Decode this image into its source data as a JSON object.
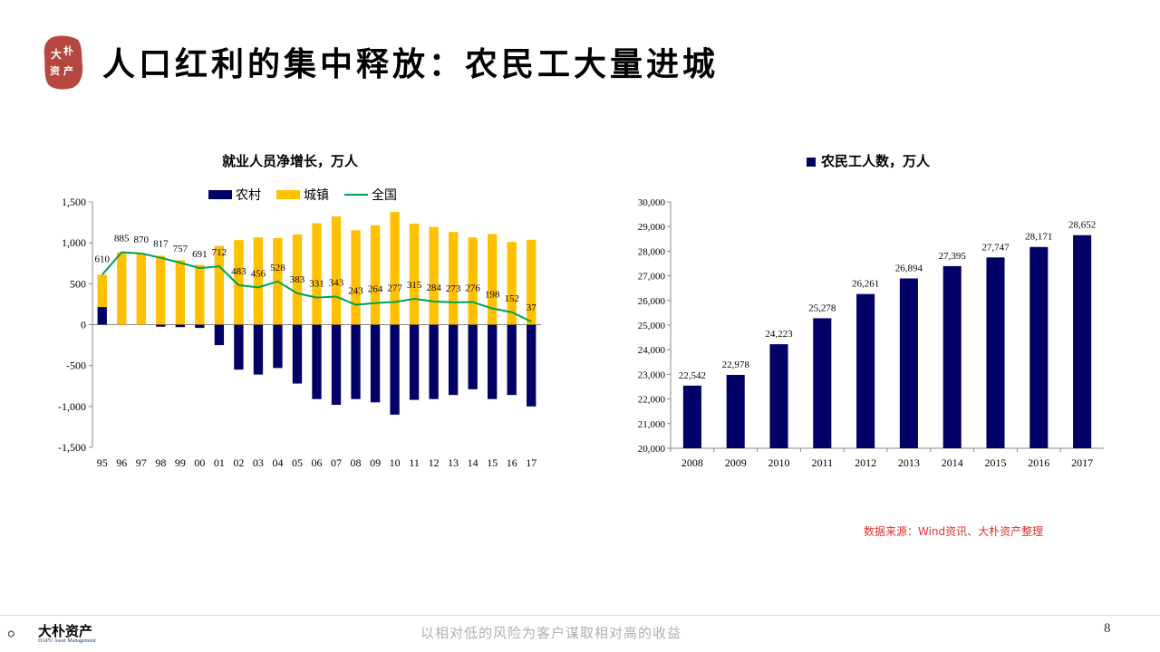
{
  "header": {
    "title": "人口红利的集中释放：农民工大量进城",
    "logo_text": "大朴资产"
  },
  "source_note": "数据来源：Wind资讯、大朴资产整理",
  "footer": {
    "brand": "大朴资产",
    "brand_en": "DAPU Asset Management",
    "slogan": "以相对低的风险为客户谋取相对高的收益",
    "page_number": "8"
  },
  "colors": {
    "rural": "#000066",
    "urban": "#FFC000",
    "total": "#00A050",
    "source_text": "#E03030"
  },
  "chart_data": [
    {
      "type": "bar",
      "title": "就业人员净增长，万人",
      "categories": [
        "95",
        "96",
        "97",
        "98",
        "99",
        "00",
        "01",
        "02",
        "03",
        "04",
        "05",
        "06",
        "07",
        "08",
        "09",
        "10",
        "11",
        "12",
        "13",
        "14",
        "15",
        "16",
        "17"
      ],
      "series": [
        {
          "name": "农村",
          "kind": "bar",
          "values": [
            215,
            0,
            0,
            -25,
            -30,
            -40,
            -250,
            -550,
            -610,
            -530,
            -720,
            -910,
            -980,
            -910,
            -950,
            -1100,
            -920,
            -910,
            -860,
            -790,
            -910,
            -860,
            -1000
          ]
        },
        {
          "name": "城镇",
          "kind": "bar",
          "values": [
            395,
            885,
            870,
            842,
            787,
            731,
            962,
            1033,
            1066,
            1058,
            1103,
            1241,
            1323,
            1153,
            1214,
            1377,
            1235,
            1194,
            1133,
            1066,
            1108,
            1012,
            1037
          ]
        },
        {
          "name": "全国",
          "kind": "line",
          "values": [
            610,
            885,
            870,
            817,
            757,
            691,
            712,
            483,
            456,
            528,
            383,
            331,
            343,
            243,
            264,
            277,
            315,
            284,
            273,
            276,
            198,
            152,
            37
          ]
        }
      ],
      "yticks": [
        "1,500",
        "1,000",
        "500",
        "0",
        "-500",
        "-1,000",
        "-1,500"
      ],
      "ylim": [
        -1500,
        1500
      ],
      "legend": "top"
    },
    {
      "type": "bar",
      "title": "农民工人数，万人",
      "categories": [
        "2008",
        "2009",
        "2010",
        "2011",
        "2012",
        "2013",
        "2014",
        "2015",
        "2016",
        "2017"
      ],
      "series": [
        {
          "name": "农民工人数，万人",
          "values": [
            22542,
            22978,
            24223,
            25278,
            26261,
            26894,
            27395,
            27747,
            28171,
            28652
          ]
        }
      ],
      "value_labels": [
        "22,542",
        "22,978",
        "24,223",
        "25,278",
        "26,261",
        "26,894",
        "27,395",
        "27,747",
        "28,171",
        "28,652"
      ],
      "yticks": [
        "30,000",
        "29,000",
        "28,000",
        "27,000",
        "26,000",
        "25,000",
        "24,000",
        "23,000",
        "22,000",
        "21,000",
        "20,000"
      ],
      "ylim": [
        20000,
        30000
      ],
      "legend": "top"
    }
  ]
}
